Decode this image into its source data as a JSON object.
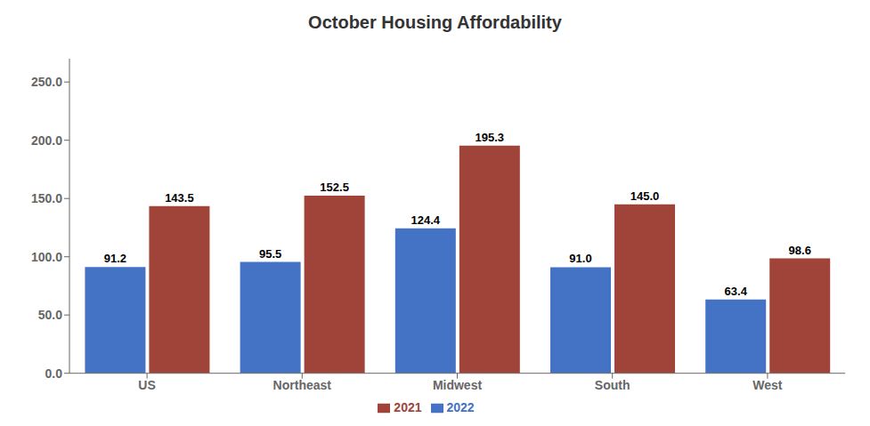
{
  "chart_data": {
    "type": "bar",
    "title": "October Housing Affordability",
    "categories": [
      "US",
      "Northeast",
      "Midwest",
      "South",
      "West"
    ],
    "series": [
      {
        "name": "2022",
        "color": "#4472C4",
        "values": [
          91.2,
          95.5,
          124.4,
          91.0,
          63.4
        ],
        "value_labels": [
          "91.2",
          "95.5",
          "124.4",
          "91.0",
          "63.4"
        ]
      },
      {
        "name": "2021",
        "color": "#A0443A",
        "values": [
          143.5,
          152.5,
          195.3,
          145.0,
          98.6
        ],
        "value_labels": [
          "143.5",
          "152.5",
          "195.3",
          "145.0",
          "98.6"
        ]
      }
    ],
    "ylim": [
      0,
      270
    ],
    "yticks": [
      {
        "value": 0,
        "label": "0.0"
      },
      {
        "value": 50,
        "label": "50.0"
      },
      {
        "value": 100,
        "label": "100.0"
      },
      {
        "value": 150,
        "label": "150.0"
      },
      {
        "value": 200,
        "label": "200.0"
      },
      {
        "value": 250,
        "label": "250.0"
      }
    ],
    "grid": false,
    "legend": "bottom",
    "data_labels": true
  }
}
